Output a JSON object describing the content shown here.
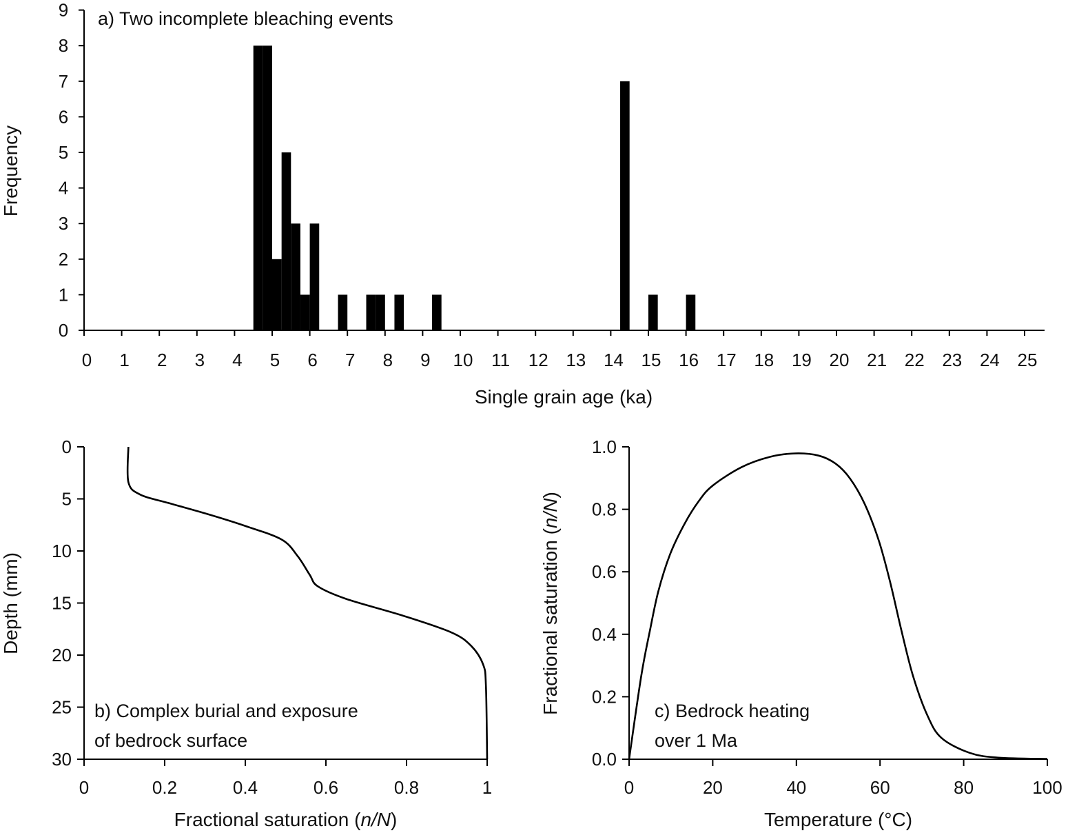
{
  "chart_data": [
    {
      "type": "bar",
      "title": "a) Two incomplete bleaching events",
      "xlabel": "Single grain age (ka)",
      "ylabel": "Frequency",
      "xlim": [
        0,
        25.5
      ],
      "ylim": [
        0,
        9
      ],
      "xticks": [
        0,
        1,
        2,
        3,
        4,
        5,
        6,
        7,
        8,
        9,
        10,
        11,
        12,
        13,
        14,
        15,
        16,
        17,
        18,
        19,
        20,
        21,
        22,
        23,
        24,
        25
      ],
      "yticks": [
        0,
        1,
        2,
        3,
        4,
        5,
        6,
        7,
        8,
        9
      ],
      "bin_width": 0.25,
      "bins": [
        {
          "start": 4.5,
          "count": 8
        },
        {
          "start": 4.75,
          "count": 8
        },
        {
          "start": 5.0,
          "count": 2
        },
        {
          "start": 5.25,
          "count": 5
        },
        {
          "start": 5.5,
          "count": 3
        },
        {
          "start": 5.75,
          "count": 1
        },
        {
          "start": 6.0,
          "count": 3
        },
        {
          "start": 6.75,
          "count": 1
        },
        {
          "start": 7.5,
          "count": 1
        },
        {
          "start": 7.75,
          "count": 1
        },
        {
          "start": 8.25,
          "count": 1
        },
        {
          "start": 9.25,
          "count": 1
        },
        {
          "start": 14.25,
          "count": 7
        },
        {
          "start": 15.0,
          "count": 1
        },
        {
          "start": 16.0,
          "count": 1
        }
      ],
      "grid": false,
      "color": "#000000"
    },
    {
      "type": "line",
      "title": [
        "b) Complex burial and exposure",
        "of bedrock surface"
      ],
      "xlabel": "Fractional saturation (n/N)",
      "ylabel": "Depth (mm)",
      "xlim": [
        0,
        1
      ],
      "ylim": [
        30,
        0
      ],
      "y_inverted": true,
      "xticks": [
        "0",
        "0.2",
        "0.4",
        "0.6",
        "0.8",
        "1"
      ],
      "yticks": [
        "0",
        "5",
        "10",
        "15",
        "20",
        "25",
        "30"
      ],
      "points": [
        [
          0.11,
          0
        ],
        [
          0.11,
          3.4
        ],
        [
          0.14,
          4.6
        ],
        [
          0.21,
          5.4
        ],
        [
          0.31,
          6.5
        ],
        [
          0.4,
          7.6
        ],
        [
          0.49,
          8.9
        ],
        [
          0.53,
          10.5
        ],
        [
          0.56,
          12.3
        ],
        [
          0.58,
          13.4
        ],
        [
          0.65,
          14.6
        ],
        [
          0.79,
          16.2
        ],
        [
          0.91,
          17.8
        ],
        [
          0.96,
          19.1
        ],
        [
          0.99,
          20.9
        ],
        [
          0.997,
          23
        ],
        [
          1.0,
          30
        ]
      ],
      "grid": false
    },
    {
      "type": "line",
      "title": [
        "c) Bedrock heating",
        "over 1 Ma"
      ],
      "xlabel": "Temperature (°C)",
      "ylabel": "Fractional saturation (n/N)",
      "xlim": [
        0,
        100
      ],
      "ylim": [
        0,
        1
      ],
      "xticks": [
        "0",
        "20",
        "40",
        "60",
        "80",
        "100"
      ],
      "yticks": [
        "0.0",
        "0.2",
        "0.4",
        "0.6",
        "0.8",
        "1.0"
      ],
      "points": [
        [
          0,
          0
        ],
        [
          2.9,
          0.266
        ],
        [
          5,
          0.413
        ],
        [
          7,
          0.538
        ],
        [
          9.8,
          0.656
        ],
        [
          13.2,
          0.752
        ],
        [
          16.6,
          0.825
        ],
        [
          20,
          0.876
        ],
        [
          26.9,
          0.935
        ],
        [
          33.7,
          0.968
        ],
        [
          39.8,
          0.979
        ],
        [
          45.3,
          0.972
        ],
        [
          49.4,
          0.946
        ],
        [
          52.8,
          0.899
        ],
        [
          56.3,
          0.818
        ],
        [
          59.7,
          0.7
        ],
        [
          62.4,
          0.568
        ],
        [
          65.1,
          0.413
        ],
        [
          67.9,
          0.266
        ],
        [
          71.3,
          0.141
        ],
        [
          74.7,
          0.068
        ],
        [
          81.5,
          0.02
        ],
        [
          88.4,
          0.005
        ],
        [
          100,
          0.001
        ]
      ],
      "grid": false
    }
  ]
}
